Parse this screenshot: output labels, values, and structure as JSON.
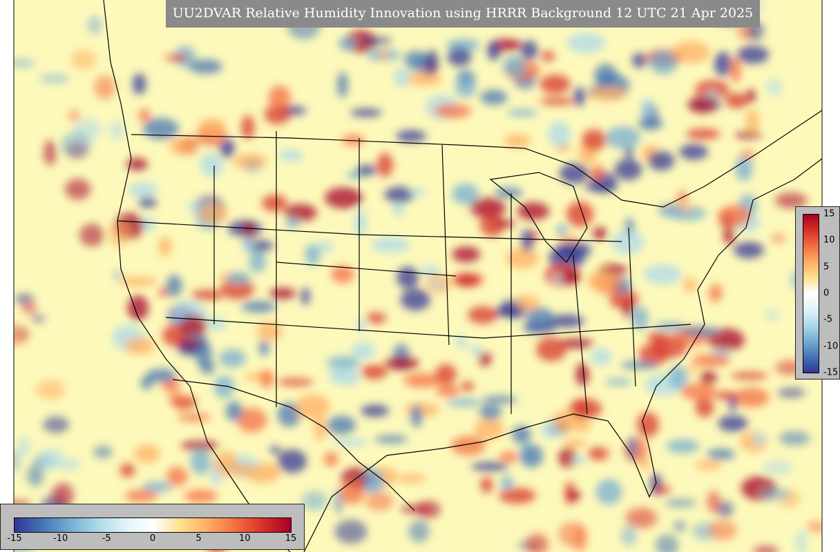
{
  "title": "UU2DVAR Relative Humidity Innovation using HRRR Background 12 UTC 21 Apr 2025",
  "colorbar_bottom": {
    "lim": [
      -15,
      15
    ],
    "ticks": [
      -15,
      -10,
      -5,
      0,
      5,
      10,
      15
    ]
  },
  "colorbar_right": {
    "lim": [
      -15,
      15
    ],
    "ticks": [
      15,
      10,
      5,
      0,
      -5,
      -10,
      -15
    ]
  }
}
